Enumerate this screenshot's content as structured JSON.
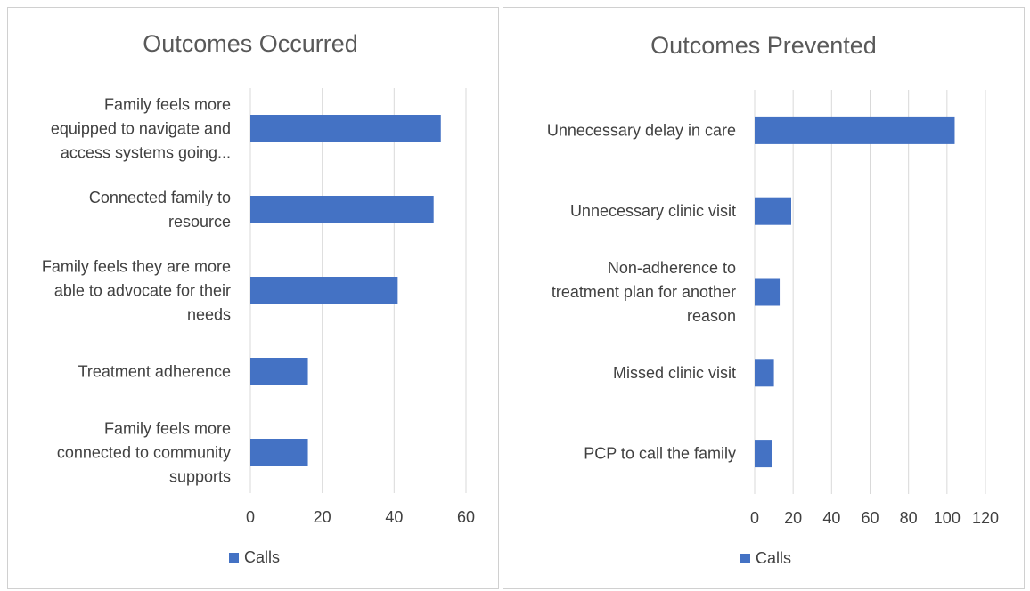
{
  "colors": {
    "bar": "#4472C4",
    "grid": "#d9d9d9",
    "text": "#404040",
    "title": "#595959"
  },
  "chart_data": [
    {
      "type": "bar",
      "orientation": "horizontal",
      "title": "Outcomes Occurred",
      "categories": [
        "Family feels more equipped to navigate and access systems going...",
        "Connected family to resource",
        "Family feels they are more able to advocate for their needs",
        "Treatment adherence",
        "Family feels more connected to community supports"
      ],
      "category_lines": [
        [
          "Family feels more",
          "equipped to navigate and",
          "access systems going..."
        ],
        [
          "Connected family to",
          "resource"
        ],
        [
          "Family feels they are more",
          "able to advocate for their",
          "needs"
        ],
        [
          "Treatment adherence"
        ],
        [
          "Family feels more",
          "connected to community",
          "supports"
        ]
      ],
      "series": [
        {
          "name": "Calls",
          "values": [
            53,
            51,
            41,
            16,
            16
          ]
        }
      ],
      "xlim": [
        0,
        60
      ],
      "xticks": [
        0,
        20,
        40,
        60
      ],
      "grid": true,
      "legend": "bottom"
    },
    {
      "type": "bar",
      "orientation": "horizontal",
      "title": "Outcomes Prevented",
      "categories": [
        "Unnecessary delay in care",
        "Unnecessary clinic visit",
        "Non-adherence to treatment plan for another reason",
        "Missed clinic visit",
        "PCP to call the family"
      ],
      "category_lines": [
        [
          "Unnecessary delay in care"
        ],
        [
          "Unnecessary clinic visit"
        ],
        [
          "Non-adherence to",
          "treatment plan for another",
          "reason"
        ],
        [
          "Missed clinic visit"
        ],
        [
          "PCP to call the family"
        ]
      ],
      "series": [
        {
          "name": "Calls",
          "values": [
            104,
            19,
            13,
            10,
            9
          ]
        }
      ],
      "xlim": [
        0,
        120
      ],
      "xticks": [
        0,
        20,
        40,
        60,
        80,
        100,
        120
      ],
      "grid": true,
      "legend": "bottom"
    }
  ]
}
